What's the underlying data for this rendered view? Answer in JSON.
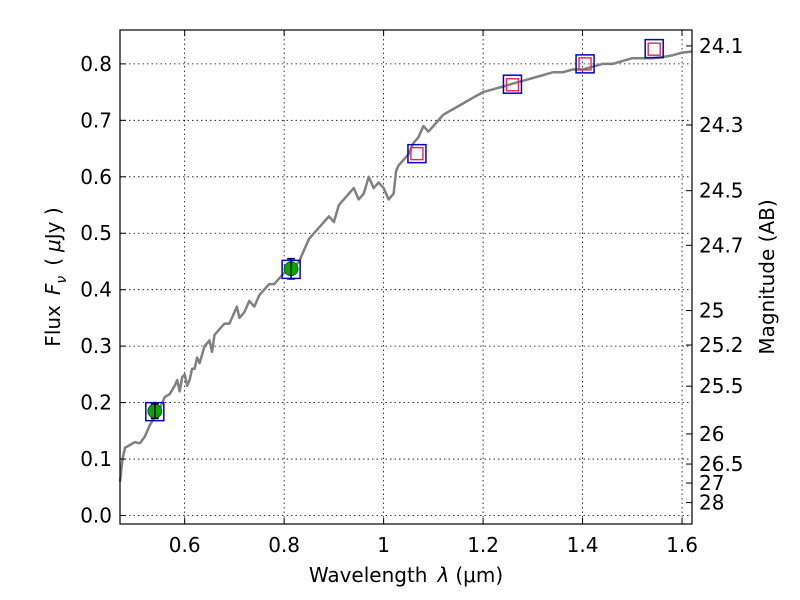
{
  "chart_data": {
    "type": "line",
    "xlabel": "Wavelength",
    "xlabel_symbol": "λ",
    "xlabel_unit": "(μm)",
    "ylabel": "Flux",
    "ylabel_symbol": "F",
    "ylabel_subscript": "ν",
    "ylabel_unit_open": "(",
    "ylabel_unit_mu": "μ",
    "ylabel_unit": "Jy )",
    "ylabel_right": "Magnitude (AB)",
    "xlim": [
      0.47,
      1.62
    ],
    "ylim": [
      -0.015,
      0.86
    ],
    "x_ticks": [
      "0.6",
      "0.8",
      "1",
      "1.2",
      "1.4",
      "1.6"
    ],
    "y_ticks": [
      "0.0",
      "0.1",
      "0.2",
      "0.3",
      "0.4",
      "0.5",
      "0.6",
      "0.7",
      "0.8"
    ],
    "right_ticks": [
      "24.1",
      "24.3",
      "24.5",
      "24.7",
      "25",
      "25.2",
      "25.5",
      "26",
      "26.5",
      "27",
      "28"
    ],
    "grid": true,
    "colors": {
      "model": "#808080",
      "observed": "#00aa00",
      "box": "#0000cc",
      "predicted": "#ee2255"
    },
    "series": [
      {
        "style": "model",
        "x": [
          0.47,
          0.475,
          0.48,
          0.49,
          0.5,
          0.51,
          0.52,
          0.53,
          0.54,
          0.55,
          0.56,
          0.57,
          0.58,
          0.585,
          0.59,
          0.595,
          0.6,
          0.605,
          0.61,
          0.615,
          0.62,
          0.625,
          0.63,
          0.64,
          0.65,
          0.655,
          0.66,
          0.67,
          0.68,
          0.69,
          0.7,
          0.705,
          0.71,
          0.72,
          0.73,
          0.74,
          0.75,
          0.76,
          0.77,
          0.78,
          0.79,
          0.8,
          0.81,
          0.82,
          0.83,
          0.84,
          0.85,
          0.86,
          0.87,
          0.88,
          0.89,
          0.9,
          0.91,
          0.92,
          0.93,
          0.94,
          0.95,
          0.96,
          0.97,
          0.98,
          0.99,
          1.0,
          1.01,
          1.02,
          1.025,
          1.03,
          1.04,
          1.05,
          1.06,
          1.07,
          1.08,
          1.09,
          1.1,
          1.12,
          1.14,
          1.16,
          1.18,
          1.2,
          1.22,
          1.24,
          1.26,
          1.28,
          1.3,
          1.32,
          1.34,
          1.36,
          1.38,
          1.4,
          1.42,
          1.44,
          1.46,
          1.48,
          1.5,
          1.52,
          1.54,
          1.56,
          1.58,
          1.6,
          1.62
        ],
        "y": [
          0.06,
          0.1,
          0.12,
          0.125,
          0.13,
          0.128,
          0.14,
          0.16,
          0.175,
          0.19,
          0.21,
          0.215,
          0.23,
          0.24,
          0.22,
          0.245,
          0.25,
          0.23,
          0.24,
          0.26,
          0.26,
          0.28,
          0.27,
          0.3,
          0.31,
          0.29,
          0.32,
          0.33,
          0.34,
          0.34,
          0.36,
          0.37,
          0.35,
          0.36,
          0.38,
          0.37,
          0.39,
          0.4,
          0.41,
          0.41,
          0.42,
          0.43,
          0.43,
          0.44,
          0.45,
          0.47,
          0.49,
          0.5,
          0.51,
          0.52,
          0.53,
          0.52,
          0.55,
          0.56,
          0.57,
          0.58,
          0.56,
          0.57,
          0.6,
          0.58,
          0.59,
          0.58,
          0.56,
          0.57,
          0.61,
          0.62,
          0.63,
          0.64,
          0.66,
          0.67,
          0.69,
          0.68,
          0.69,
          0.71,
          0.72,
          0.73,
          0.74,
          0.75,
          0.755,
          0.76,
          0.765,
          0.77,
          0.775,
          0.78,
          0.785,
          0.785,
          0.79,
          0.79,
          0.795,
          0.8,
          0.8,
          0.805,
          0.81,
          0.81,
          0.81,
          0.812,
          0.815,
          0.82,
          0.822
        ]
      },
      {
        "style": "observed",
        "x": [
          0.54,
          0.814
        ],
        "y": [
          0.185,
          0.437
        ],
        "yerr": [
          0.013,
          0.018
        ]
      },
      {
        "style": "predicted",
        "x": [
          1.067,
          1.259,
          1.405,
          1.544
        ],
        "y": [
          0.641,
          0.763,
          0.8,
          0.826
        ]
      },
      {
        "style": "box",
        "x": [
          0.54,
          0.814,
          1.067,
          1.259,
          1.405,
          1.544
        ],
        "y": [
          0.184,
          0.436,
          0.641,
          0.764,
          0.8,
          0.827
        ]
      }
    ]
  }
}
